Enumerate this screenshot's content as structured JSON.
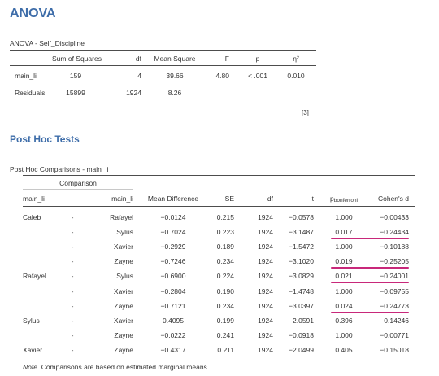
{
  "headings": {
    "anova": "ANOVA",
    "posthoc": "Post Hoc Tests"
  },
  "anova": {
    "caption": "ANOVA - Self_Discipline",
    "columns": [
      "",
      "Sum of Squares",
      "df",
      "Mean Square",
      "F",
      "p",
      "η²"
    ],
    "rows": [
      [
        "main_li",
        "159",
        "4",
        "39.66",
        "4.80",
        "< .001",
        "0.010"
      ],
      [
        "Residuals",
        "15899",
        "1924",
        "8.26",
        "",
        "",
        ""
      ]
    ],
    "footnote_ref": "[3]"
  },
  "posthoc": {
    "caption": "Post Hoc Comparisons - main_li",
    "group_header": "Comparison",
    "columns": [
      "main_li",
      "",
      "main_li",
      "Mean Difference",
      "SE",
      "df",
      "t",
      "p",
      "Cohen's d"
    ],
    "p_subscript": "bonferroni",
    "rows": [
      [
        "Caleb",
        "-",
        "Rafayel",
        "−0.0124",
        "0.215",
        "1924",
        "−0.0578",
        "1.000",
        "−0.00433"
      ],
      [
        "",
        "-",
        "Sylus",
        "−0.7024",
        "0.223",
        "1924",
        "−3.1487",
        "0.017",
        "−0.24434"
      ],
      [
        "",
        "-",
        "Xavier",
        "−0.2929",
        "0.189",
        "1924",
        "−1.5472",
        "1.000",
        "−0.10188"
      ],
      [
        "",
        "-",
        "Zayne",
        "−0.7246",
        "0.234",
        "1924",
        "−3.1020",
        "0.019",
        "−0.25205"
      ],
      [
        "Rafayel",
        "-",
        "Sylus",
        "−0.6900",
        "0.224",
        "1924",
        "−3.0829",
        "0.021",
        "−0.24001"
      ],
      [
        "",
        "-",
        "Xavier",
        "−0.2804",
        "0.190",
        "1924",
        "−1.4748",
        "1.000",
        "−0.09755"
      ],
      [
        "",
        "-",
        "Zayne",
        "−0.7121",
        "0.234",
        "1924",
        "−3.0397",
        "0.024",
        "−0.24773"
      ],
      [
        "Sylus",
        "-",
        "Xavier",
        "0.4095",
        "0.199",
        "1924",
        "2.0591",
        "0.396",
        "0.14246"
      ],
      [
        "",
        "-",
        "Zayne",
        "−0.0222",
        "0.241",
        "1924",
        "−0.0918",
        "1.000",
        "−0.00771"
      ],
      [
        "Xavier",
        "-",
        "Zayne",
        "−0.4317",
        "0.211",
        "1924",
        "−2.0499",
        "0.405",
        "−0.15018"
      ]
    ],
    "highlight_color": "#c8287a",
    "highlighted_rows": [
      1,
      3,
      4,
      6
    ],
    "note_label": "Note.",
    "note_text": " Comparisons are based on estimated marginal means"
  }
}
